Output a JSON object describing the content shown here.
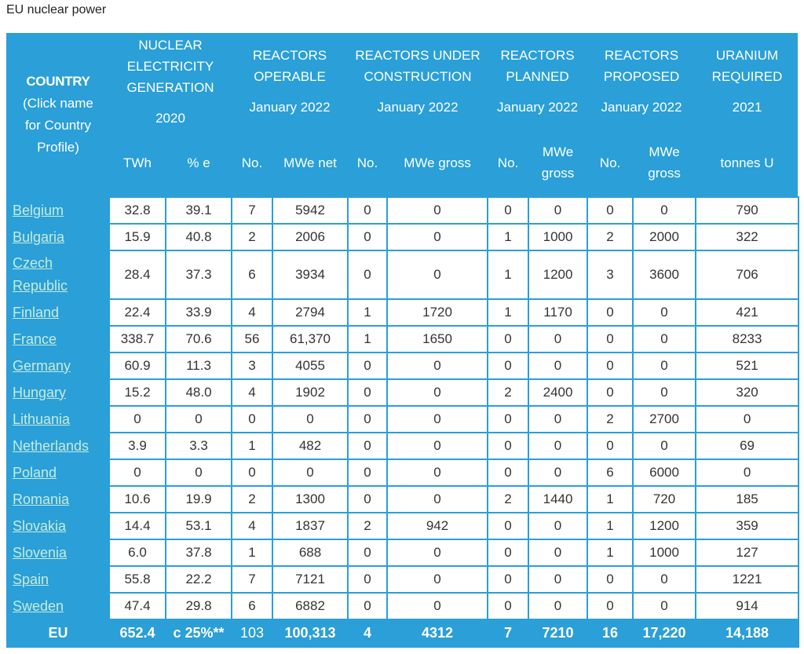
{
  "title": "EU nuclear power",
  "header": {
    "country": "COUNTRY",
    "country_note": "(Click name for Country Profile)",
    "generation": "NUCLEAR ELECTRICITY GENERATION",
    "generation_year": "2020",
    "operable": "REACTORS OPERABLE",
    "operable_date": "January 2022",
    "construction": "REACTORS UNDER CONSTRUCTION",
    "construction_date": "January 2022",
    "planned": "REACTORS PLANNED",
    "planned_date": "January 2022",
    "proposed": "REACTORS PROPOSED",
    "proposed_date": "January 2022",
    "uranium": "URANIUM REQUIRED",
    "uranium_year": "2021"
  },
  "units": [
    "TWh",
    "% e",
    "No.",
    "MWe net",
    "No.",
    "MWe gross",
    "No.",
    "MWe gross",
    "No.",
    "MWe gross",
    "tonnes U"
  ],
  "rows": [
    {
      "country": "Belgium",
      "twh": "32.8",
      "pct": "39.1",
      "op_no": "7",
      "op_mwe": "5942",
      "uc_no": "0",
      "uc_mwe": "0",
      "pl_no": "0",
      "pl_mwe": "0",
      "pr_no": "0",
      "pr_mwe": "0",
      "u": "790"
    },
    {
      "country": "Bulgaria",
      "twh": "15.9",
      "pct": "40.8",
      "op_no": "2",
      "op_mwe": "2006",
      "uc_no": "0",
      "uc_mwe": "0",
      "pl_no": "1",
      "pl_mwe": "1000",
      "pr_no": "2",
      "pr_mwe": "2000",
      "u": "322"
    },
    {
      "country": "Czech Republic",
      "twh": "28.4",
      "pct": "37.3",
      "op_no": "6",
      "op_mwe": "3934",
      "uc_no": "0",
      "uc_mwe": "0",
      "pl_no": "1",
      "pl_mwe": "1200",
      "pr_no": "3",
      "pr_mwe": "3600",
      "u": "706"
    },
    {
      "country": "Finland",
      "twh": "22.4",
      "pct": "33.9",
      "op_no": "4",
      "op_mwe": "2794",
      "uc_no": "1",
      "uc_mwe": "1720",
      "pl_no": "1",
      "pl_mwe": "1170",
      "pr_no": "0",
      "pr_mwe": "0",
      "u": "421"
    },
    {
      "country": "France",
      "twh": "338.7",
      "pct": "70.6",
      "op_no": "56",
      "op_mwe": "61,370",
      "uc_no": "1",
      "uc_mwe": "1650",
      "pl_no": "0",
      "pl_mwe": "0",
      "pr_no": "0",
      "pr_mwe": "0",
      "u": "8233"
    },
    {
      "country": "Germany",
      "twh": "60.9",
      "pct": "11.3",
      "op_no": "3",
      "op_mwe": "4055",
      "uc_no": "0",
      "uc_mwe": "0",
      "pl_no": "0",
      "pl_mwe": "0",
      "pr_no": "0",
      "pr_mwe": "0",
      "u": "521"
    },
    {
      "country": "Hungary",
      "twh": "15.2",
      "pct": "48.0",
      "op_no": "4",
      "op_mwe": "1902",
      "uc_no": "0",
      "uc_mwe": "0",
      "pl_no": "2",
      "pl_mwe": "2400",
      "pr_no": "0",
      "pr_mwe": "0",
      "u": "320"
    },
    {
      "country": "Lithuania",
      "twh": "0",
      "pct": "0",
      "op_no": "0",
      "op_mwe": "0",
      "uc_no": "0",
      "uc_mwe": "0",
      "pl_no": "0",
      "pl_mwe": "0",
      "pr_no": "2",
      "pr_mwe": "2700",
      "u": "0"
    },
    {
      "country": "Netherlands",
      "twh": "3.9",
      "pct": "3.3",
      "op_no": "1",
      "op_mwe": "482",
      "uc_no": "0",
      "uc_mwe": "0",
      "pl_no": "0",
      "pl_mwe": "0",
      "pr_no": "0",
      "pr_mwe": "0",
      "u": "69"
    },
    {
      "country": "Poland",
      "twh": "0",
      "pct": "0",
      "op_no": "0",
      "op_mwe": "0",
      "uc_no": "0",
      "uc_mwe": "0",
      "pl_no": "0",
      "pl_mwe": "0",
      "pr_no": "6",
      "pr_mwe": "6000",
      "u": "0"
    },
    {
      "country": "Romania",
      "twh": "10.6",
      "pct": "19.9",
      "op_no": "2",
      "op_mwe": "1300",
      "uc_no": "0",
      "uc_mwe": "0",
      "pl_no": "2",
      "pl_mwe": "1440",
      "pr_no": "1",
      "pr_mwe": "720",
      "u": "185"
    },
    {
      "country": "Slovakia",
      "twh": "14.4",
      "pct": "53.1",
      "op_no": "4",
      "op_mwe": "1837",
      "uc_no": "2",
      "uc_mwe": "942",
      "pl_no": "0",
      "pl_mwe": "0",
      "pr_no": "1",
      "pr_mwe": "1200",
      "u": "359"
    },
    {
      "country": "Slovenia",
      "twh": "6.0",
      "pct": "37.8",
      "op_no": "1",
      "op_mwe": "688",
      "uc_no": "0",
      "uc_mwe": "0",
      "pl_no": "0",
      "pl_mwe": "0",
      "pr_no": "1",
      "pr_mwe": "1000",
      "u": "127"
    },
    {
      "country": "Spain",
      "twh": "55.8",
      "pct": "22.2",
      "op_no": "7",
      "op_mwe": "7121",
      "uc_no": "0",
      "uc_mwe": "0",
      "pl_no": "0",
      "pl_mwe": "0",
      "pr_no": "0",
      "pr_mwe": "0",
      "u": "1221"
    },
    {
      "country": "Sweden",
      "twh": "47.4",
      "pct": "29.8",
      "op_no": "6",
      "op_mwe": "6882",
      "uc_no": "0",
      "uc_mwe": "0",
      "pl_no": "0",
      "pl_mwe": "0",
      "pr_no": "0",
      "pr_mwe": "0",
      "u": "914"
    }
  ],
  "total": {
    "country": "EU",
    "twh": "652.4",
    "pct": "c 25%**",
    "op_no": "103",
    "op_mwe": "100,313",
    "uc_no": "4",
    "uc_mwe": "4312",
    "pl_no": "7",
    "pl_mwe": "7210",
    "pr_no": "16",
    "pr_mwe": "17,220",
    "u": "14,188"
  },
  "colors": {
    "header_bg": "#2a9fd8",
    "link": "#c6ecd9",
    "cell_bg": "#ffffff"
  }
}
